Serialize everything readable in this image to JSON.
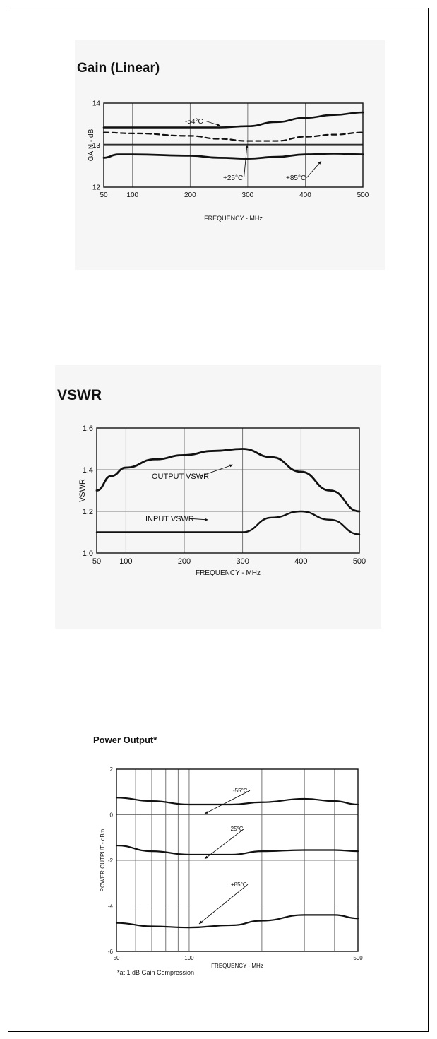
{
  "chart_data": [
    {
      "type": "line",
      "title": "Gain (Linear)",
      "xlabel": "FREQUENCY - MHz",
      "ylabel": "GAIN - dB",
      "xlim": [
        50,
        500
      ],
      "ylim": [
        12,
        14
      ],
      "x_ticks": [
        "50",
        "100",
        "200",
        "300",
        "400",
        "500"
      ],
      "y_ticks": [
        "12",
        "13",
        "14"
      ],
      "grid": true,
      "series": [
        {
          "name": "-54°C",
          "x": [
            50,
            100,
            200,
            250,
            300,
            350,
            400,
            450,
            500
          ],
          "y": [
            13.42,
            13.42,
            13.42,
            13.42,
            13.45,
            13.55,
            13.65,
            13.72,
            13.78
          ]
        },
        {
          "name": "",
          "x": [
            50,
            100,
            200,
            250,
            300,
            350,
            400,
            450,
            500
          ],
          "y": [
            13.3,
            13.28,
            13.22,
            13.15,
            13.1,
            13.1,
            13.2,
            13.25,
            13.3
          ]
        },
        {
          "name": "+25°C",
          "x": [
            50,
            100,
            200,
            300,
            400,
            500
          ],
          "y": [
            13.02,
            13.02,
            13.02,
            13.02,
            13.02,
            13.02
          ]
        },
        {
          "name": "+85°C",
          "x": [
            50,
            75,
            100,
            200,
            250,
            300,
            350,
            400,
            450,
            500
          ],
          "y": [
            12.7,
            12.78,
            12.78,
            12.75,
            12.7,
            12.68,
            12.72,
            12.78,
            12.8,
            12.78
          ]
        }
      ],
      "annotations": [
        {
          "text": "-54°C",
          "target": "-54°C"
        },
        {
          "text": "+25°C",
          "target": "+25°C"
        },
        {
          "text": "+85°C",
          "target": "+85°C"
        }
      ]
    },
    {
      "type": "line",
      "title": "VSWR",
      "xlabel": "FREQUENCY - MHz",
      "ylabel": "VSWR",
      "xlim": [
        50,
        500
      ],
      "ylim": [
        1.0,
        1.6
      ],
      "x_ticks": [
        "50",
        "100",
        "200",
        "300",
        "400",
        "500"
      ],
      "y_ticks": [
        "1.0",
        "1.2",
        "1.4",
        "1.6"
      ],
      "grid": true,
      "series": [
        {
          "name": "OUTPUT VSWR",
          "x": [
            50,
            75,
            100,
            150,
            200,
            250,
            300,
            350,
            400,
            450,
            500
          ],
          "y": [
            1.3,
            1.37,
            1.41,
            1.45,
            1.47,
            1.49,
            1.5,
            1.46,
            1.39,
            1.3,
            1.2
          ]
        },
        {
          "name": "INPUT VSWR",
          "x": [
            50,
            100,
            200,
            300,
            350,
            400,
            450,
            500
          ],
          "y": [
            1.1,
            1.1,
            1.1,
            1.1,
            1.17,
            1.2,
            1.16,
            1.09
          ]
        }
      ],
      "annotations": [
        {
          "text": "OUTPUT VSWR",
          "target": "OUTPUT VSWR"
        },
        {
          "text": "INPUT VSWR",
          "target": "INPUT VSWR"
        }
      ]
    },
    {
      "type": "line",
      "title": "Power Output*",
      "xlabel": "FREQUENCY - MHz",
      "ylabel": "POWER OUTPUT - dBm",
      "x_scale": "log",
      "xlim": [
        50,
        500
      ],
      "ylim": [
        -6,
        2
      ],
      "x_ticks": [
        "50",
        "100",
        "500"
      ],
      "y_ticks": [
        "2",
        "0",
        "-2",
        "-4",
        "-6"
      ],
      "grid": true,
      "series": [
        {
          "name": "-55°C",
          "x": [
            50,
            70,
            100,
            150,
            200,
            300,
            400,
            500
          ],
          "y": [
            0.75,
            0.6,
            0.45,
            0.45,
            0.55,
            0.7,
            0.6,
            0.45
          ]
        },
        {
          "name": "+25°C",
          "x": [
            50,
            70,
            100,
            150,
            200,
            300,
            400,
            500
          ],
          "y": [
            -1.35,
            -1.6,
            -1.75,
            -1.75,
            -1.6,
            -1.55,
            -1.55,
            -1.6
          ]
        },
        {
          "name": "+85°C",
          "x": [
            50,
            70,
            100,
            150,
            200,
            300,
            400,
            500
          ],
          "y": [
            -4.75,
            -4.9,
            -4.95,
            -4.85,
            -4.65,
            -4.4,
            -4.4,
            -4.55
          ]
        }
      ],
      "annotations": [
        {
          "text": "-55°C",
          "target": "-55°C"
        },
        {
          "text": "+25°C",
          "target": "+25°C"
        },
        {
          "text": "+85°C",
          "target": "+85°C"
        }
      ],
      "footnote": "*at 1 dB Gain Compression"
    }
  ],
  "colors": {
    "line": "#111111",
    "grid": "#555555",
    "panel": "#f6f6f6"
  }
}
